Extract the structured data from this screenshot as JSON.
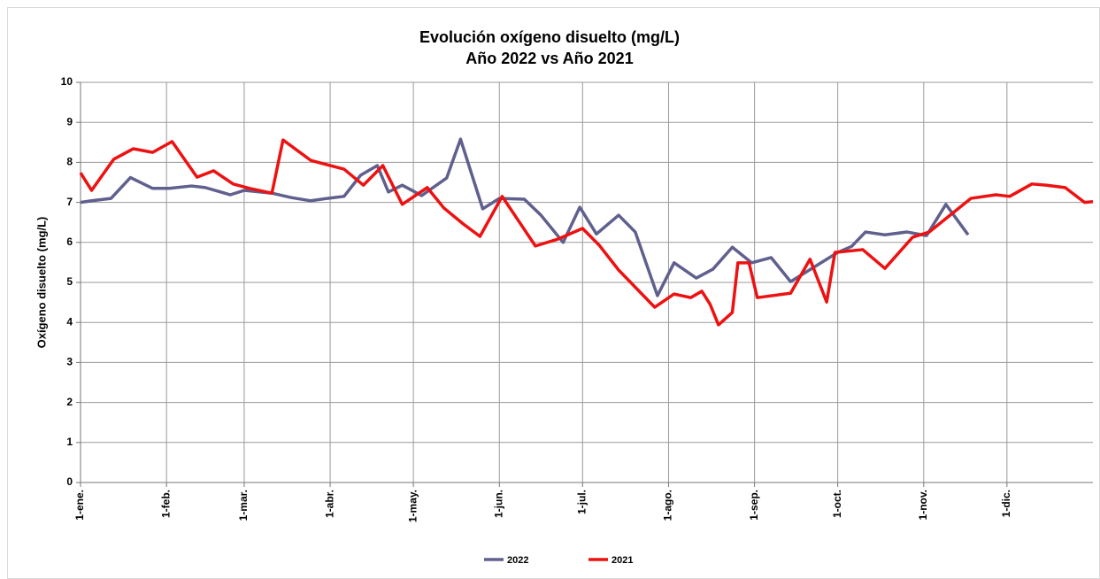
{
  "chart_data": {
    "type": "line",
    "title": "Evolución oxígeno disuelto (mg/L)",
    "subtitle": "Año 2022 vs Año 2021",
    "y_label": "Oxígeno disuelto (mg/L)",
    "xlim": [
      1,
      366
    ],
    "xticks": [
      {
        "value": 1,
        "label": "1-ene."
      },
      {
        "value": 32,
        "label": "1-feb."
      },
      {
        "value": 60,
        "label": "1-mar."
      },
      {
        "value": 91,
        "label": "1-abr."
      },
      {
        "value": 121,
        "label": "1-may."
      },
      {
        "value": 152,
        "label": "1-jun."
      },
      {
        "value": 182,
        "label": "1-jul."
      },
      {
        "value": 213,
        "label": "1-ago."
      },
      {
        "value": 244,
        "label": "1-sep."
      },
      {
        "value": 274,
        "label": "1-oct."
      },
      {
        "value": 305,
        "label": "1-nov."
      },
      {
        "value": 335,
        "label": "1-dic."
      }
    ],
    "ylim": [
      0,
      10
    ],
    "yticks": [
      0,
      1,
      2,
      3,
      4,
      5,
      6,
      7,
      8,
      9,
      10
    ],
    "grid": true,
    "legend": "bottom",
    "series": [
      {
        "name": "2022",
        "color": "#60608f",
        "x": [
          1,
          5,
          12,
          19,
          27,
          33,
          41,
          46,
          55,
          60,
          70,
          77,
          84,
          90,
          96,
          102,
          108,
          112,
          117,
          124,
          133,
          138,
          146,
          152,
          161,
          167,
          175,
          181,
          187,
          195,
          201,
          209,
          215,
          223,
          229,
          236,
          243,
          250,
          257,
          274,
          279,
          284,
          291,
          299,
          306,
          313,
          321
        ],
        "values": [
          7.0,
          7.04,
          7.1,
          7.62,
          7.35,
          7.35,
          7.41,
          7.37,
          7.19,
          7.3,
          7.23,
          7.12,
          7.04,
          7.1,
          7.15,
          7.68,
          7.92,
          7.26,
          7.43,
          7.17,
          7.61,
          8.58,
          6.84,
          7.1,
          7.08,
          6.68,
          6.0,
          6.88,
          6.21,
          6.68,
          6.26,
          4.67,
          5.49,
          5.11,
          5.33,
          5.88,
          5.49,
          5.62,
          5.02,
          5.75,
          5.9,
          6.26,
          6.19,
          6.26,
          6.17,
          6.95,
          6.19
        ]
      },
      {
        "name": "2021",
        "color": "#ee1111",
        "x": [
          1,
          5,
          13,
          20,
          27,
          34,
          43,
          49,
          56,
          62,
          70,
          74,
          84,
          96,
          103,
          110,
          117,
          126,
          132,
          139,
          145,
          153,
          165,
          173,
          182,
          188,
          195,
          208,
          215,
          221,
          225,
          228,
          231,
          236,
          238,
          242,
          245,
          257,
          264,
          270,
          273,
          283,
          291,
          301,
          307,
          322,
          331,
          336,
          344,
          349,
          356,
          363,
          366
        ],
        "values": [
          7.74,
          7.3,
          8.08,
          8.34,
          8.25,
          8.52,
          7.63,
          7.79,
          7.46,
          7.35,
          7.23,
          8.56,
          8.05,
          7.83,
          7.43,
          7.92,
          6.95,
          7.37,
          6.86,
          6.46,
          6.15,
          7.15,
          5.91,
          6.08,
          6.35,
          5.93,
          5.31,
          4.38,
          4.71,
          4.62,
          4.78,
          4.45,
          3.94,
          4.25,
          5.49,
          5.49,
          4.62,
          4.73,
          5.58,
          4.51,
          5.75,
          5.82,
          5.35,
          6.13,
          6.26,
          7.1,
          7.19,
          7.15,
          7.46,
          7.43,
          7.37,
          7.0,
          7.02
        ]
      }
    ]
  }
}
